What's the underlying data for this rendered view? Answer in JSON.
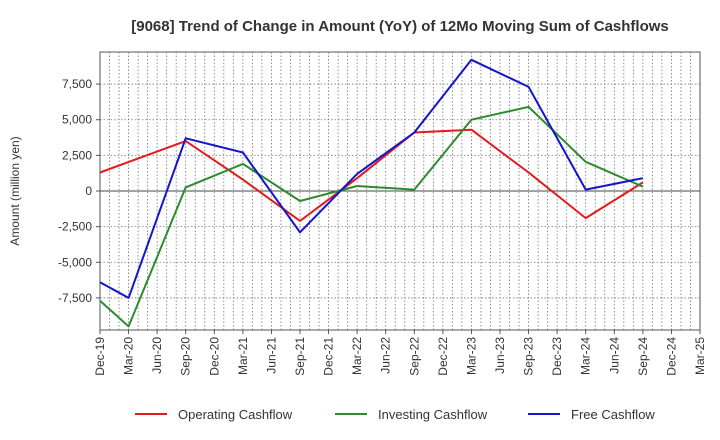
{
  "chart_data": {
    "type": "line",
    "title": "[9068]  Trend of Change in Amount (YoY) of 12Mo Moving Sum of Cashflows",
    "xlabel": "",
    "ylabel": "Amount (million yen)",
    "ylim": [
      -9750,
      9750
    ],
    "y_ticks": [
      7500,
      5000,
      2500,
      0,
      -2500,
      -5000,
      -7500
    ],
    "y_tick_labels": [
      "7,500",
      "5,000",
      "2,500",
      "0",
      "-2,500",
      "-5,000",
      "-7,500"
    ],
    "categories": [
      "Dec-19",
      "Mar-20",
      "Jun-20",
      "Sep-20",
      "Dec-20",
      "Mar-21",
      "Jun-21",
      "Sep-21",
      "Dec-21",
      "Mar-22",
      "Jun-22",
      "Sep-22",
      "Dec-22",
      "Mar-23",
      "Jun-23",
      "Sep-23",
      "Dec-23",
      "Mar-24",
      "Jun-24",
      "Sep-24",
      "Dec-24",
      "Mar-25"
    ],
    "x_tick_labels": [
      "Dec-19",
      "Mar-20",
      "Jun-20",
      "Sep-20",
      "Dec-20",
      "Mar-21",
      "Jun-21",
      "Sep-21",
      "Dec-21",
      "Mar-22",
      "Jun-22",
      "Sep-22",
      "Dec-22",
      "Mar-23",
      "Jun-23",
      "Sep-23",
      "Dec-23",
      "Mar-24",
      "Jun-24",
      "Sep-24",
      "Dec-24",
      "Mar-25"
    ],
    "legend_position": "bottom",
    "grid": true,
    "series": [
      {
        "name": "Operating Cashflow",
        "color": "#e41a1c",
        "values": [
          1300,
          null,
          null,
          3500,
          null,
          800,
          null,
          -2100,
          null,
          900,
          null,
          4100,
          null,
          4300,
          null,
          1300,
          null,
          -1900,
          null,
          600,
          null,
          null
        ]
      },
      {
        "name": "Investing Cashflow",
        "color": "#2e8b2e",
        "values": [
          -7700,
          -9500,
          null,
          250,
          null,
          1900,
          null,
          -700,
          null,
          350,
          null,
          100,
          null,
          5000,
          null,
          5900,
          null,
          2050,
          null,
          300,
          null,
          null
        ]
      },
      {
        "name": "Free Cashflow",
        "color": "#1515cc",
        "values": [
          -6400,
          -7500,
          null,
          3700,
          null,
          2700,
          null,
          -2900,
          null,
          1200,
          null,
          4100,
          null,
          9200,
          null,
          7300,
          null,
          100,
          null,
          900,
          null,
          null
        ]
      }
    ]
  }
}
